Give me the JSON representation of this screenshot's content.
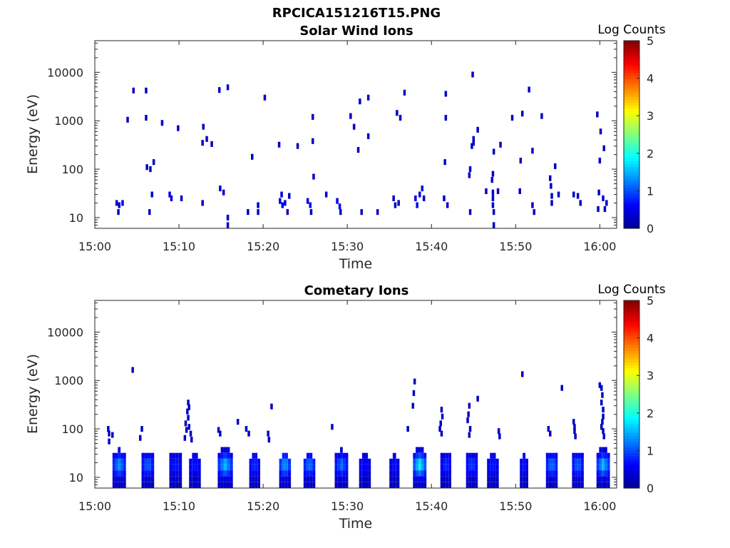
{
  "figure_title": "RPCICA151216T15.PNG",
  "colors": {
    "colormap": [
      "#00008f",
      "#0000ff",
      "#0080ff",
      "#00ffff",
      "#80ff80",
      "#ffff00",
      "#ff8000",
      "#ff0000",
      "#800000"
    ],
    "axis": "#262626",
    "background": "#ffffff"
  },
  "chart_data": [
    {
      "type": "heatmap",
      "title": "Solar Wind Ions",
      "xlabel": "Time",
      "ylabel": "Energy (eV)",
      "xticks": [
        "15:00",
        "15:10",
        "15:20",
        "15:30",
        "15:40",
        "15:50",
        "16:00"
      ],
      "x_range_min": [
        0,
        62
      ],
      "ylim": [
        6,
        45000
      ],
      "yscale": "log",
      "yticks": [
        10,
        100,
        1000,
        10000
      ],
      "ytick_labels": [
        "10",
        "100",
        "1000",
        "10000"
      ],
      "colorbar": {
        "label": "Log Counts",
        "range": [
          0,
          5
        ],
        "ticks": [
          "0",
          "1",
          "2",
          "3",
          "4",
          "5"
        ]
      },
      "cells": [
        [
          2.6,
          20,
          0.4
        ],
        [
          2.9,
          18,
          0.4
        ],
        [
          3.3,
          20,
          0.4
        ],
        [
          2.8,
          13,
          0.3
        ],
        [
          3.9,
          1050,
          0.3
        ],
        [
          4.6,
          4200,
          0.3
        ],
        [
          6.1,
          4200,
          0.3
        ],
        [
          6.1,
          1150,
          0.3
        ],
        [
          6.2,
          110,
          0.3
        ],
        [
          6.6,
          100,
          0.3
        ],
        [
          7.0,
          140,
          0.3
        ],
        [
          6.5,
          13,
          0.3
        ],
        [
          6.8,
          30,
          0.3
        ],
        [
          8.0,
          900,
          0.3
        ],
        [
          9.9,
          700,
          0.3
        ],
        [
          8.9,
          30,
          0.4
        ],
        [
          9.1,
          25,
          0.4
        ],
        [
          10.3,
          25,
          0.3
        ],
        [
          12.9,
          750,
          0.3
        ],
        [
          12.8,
          350,
          0.3
        ],
        [
          13.3,
          420,
          0.3
        ],
        [
          13.9,
          330,
          0.3
        ],
        [
          12.8,
          20,
          0.3
        ],
        [
          14.8,
          4300,
          0.3
        ],
        [
          15.8,
          4900,
          0.3
        ],
        [
          14.9,
          40,
          0.4
        ],
        [
          15.3,
          33,
          0.4
        ],
        [
          15.8,
          10,
          0.3
        ],
        [
          15.8,
          7,
          0.3
        ],
        [
          20.2,
          3000,
          0.3
        ],
        [
          18.7,
          180,
          0.3
        ],
        [
          18.2,
          13,
          0.3
        ],
        [
          19.4,
          18,
          0.3
        ],
        [
          19.4,
          13,
          0.3
        ],
        [
          21.9,
          320,
          0.3
        ],
        [
          24.1,
          300,
          0.3
        ],
        [
          25.9,
          1200,
          0.3
        ],
        [
          25.9,
          380,
          0.3
        ],
        [
          26.0,
          70,
          0.3
        ],
        [
          22.0,
          22,
          0.5
        ],
        [
          22.3,
          18,
          0.5
        ],
        [
          22.6,
          20,
          0.5
        ],
        [
          22.2,
          30,
          0.3
        ],
        [
          23.1,
          28,
          0.3
        ],
        [
          22.9,
          13,
          0.3
        ],
        [
          25.3,
          22,
          0.5
        ],
        [
          25.6,
          18,
          0.5
        ],
        [
          25.7,
          13,
          0.3
        ],
        [
          27.5,
          30,
          0.3
        ],
        [
          28.8,
          22,
          0.5
        ],
        [
          29.1,
          17,
          0.5
        ],
        [
          29.2,
          13,
          0.3
        ],
        [
          30.4,
          1250,
          0.3
        ],
        [
          30.8,
          750,
          0.3
        ],
        [
          31.3,
          250,
          0.3
        ],
        [
          31.5,
          2500,
          0.3
        ],
        [
          32.5,
          3000,
          0.3
        ],
        [
          32.5,
          480,
          0.3
        ],
        [
          31.7,
          13,
          0.3
        ],
        [
          33.6,
          13,
          0.3
        ],
        [
          35.5,
          25,
          0.3
        ],
        [
          35.9,
          1450,
          0.3
        ],
        [
          36.3,
          1150,
          0.3
        ],
        [
          36.8,
          3800,
          0.3
        ],
        [
          36.1,
          20,
          0.3
        ],
        [
          35.7,
          18,
          0.3
        ],
        [
          38.1,
          25,
          0.5
        ],
        [
          38.6,
          30,
          0.5
        ],
        [
          38.9,
          40,
          0.5
        ],
        [
          38.3,
          18,
          0.5
        ],
        [
          39.1,
          25,
          0.3
        ],
        [
          41.7,
          3600,
          0.3
        ],
        [
          41.7,
          1150,
          0.3
        ],
        [
          41.6,
          140,
          0.3
        ],
        [
          41.5,
          25,
          0.3
        ],
        [
          41.9,
          18,
          0.3
        ],
        [
          44.9,
          9000,
          0.3
        ],
        [
          45.0,
          420,
          0.3
        ],
        [
          45.0,
          350,
          0.3
        ],
        [
          44.8,
          300,
          0.3
        ],
        [
          45.5,
          650,
          0.3
        ],
        [
          44.5,
          75,
          0.3
        ],
        [
          44.6,
          100,
          0.3
        ],
        [
          44.6,
          13,
          0.3
        ],
        [
          47.4,
          230,
          0.3
        ],
        [
          47.3,
          80,
          0.3
        ],
        [
          47.2,
          60,
          0.3
        ],
        [
          46.5,
          35,
          0.3
        ],
        [
          47.3,
          33,
          0.3
        ],
        [
          47.3,
          25,
          0.3
        ],
        [
          47.3,
          18,
          0.3
        ],
        [
          47.4,
          13,
          0.3
        ],
        [
          47.4,
          7,
          0.3
        ],
        [
          47.9,
          35,
          0.3
        ],
        [
          48.2,
          320,
          0.3
        ],
        [
          49.6,
          1150,
          0.3
        ],
        [
          50.8,
          1400,
          0.3
        ],
        [
          50.6,
          150,
          0.3
        ],
        [
          50.5,
          35,
          0.3
        ],
        [
          51.6,
          4400,
          0.3
        ],
        [
          52.0,
          240,
          0.3
        ],
        [
          53.1,
          1250,
          0.3
        ],
        [
          54.1,
          65,
          0.3
        ],
        [
          54.2,
          45,
          0.3
        ],
        [
          54.3,
          28,
          0.3
        ],
        [
          54.3,
          20,
          0.3
        ],
        [
          54.7,
          115,
          0.3
        ],
        [
          55.1,
          30,
          0.3
        ],
        [
          52.0,
          18,
          0.3
        ],
        [
          52.2,
          13,
          0.3
        ],
        [
          56.9,
          30,
          0.3
        ],
        [
          57.4,
          28,
          0.3
        ],
        [
          57.7,
          20,
          0.3
        ],
        [
          59.7,
          1350,
          0.3
        ],
        [
          60.1,
          600,
          0.3
        ],
        [
          60.5,
          270,
          0.3
        ],
        [
          60.0,
          150,
          0.3
        ],
        [
          59.9,
          33,
          0.4
        ],
        [
          60.4,
          25,
          0.4
        ],
        [
          60.8,
          20,
          0.4
        ],
        [
          60.6,
          15,
          0.3
        ],
        [
          59.8,
          15,
          0.3
        ]
      ]
    },
    {
      "type": "heatmap",
      "title": "Cometary Ions",
      "xlabel": "Time",
      "ylabel": "Energy (eV)",
      "xticks": [
        "15:00",
        "15:10",
        "15:20",
        "15:30",
        "15:40",
        "15:50",
        "16:00"
      ],
      "x_range_min": [
        0,
        62
      ],
      "ylim": [
        6,
        45000
      ],
      "yscale": "log",
      "yticks": [
        10,
        100,
        1000,
        10000
      ],
      "ytick_labels": [
        "10",
        "100",
        "1000",
        "10000"
      ],
      "colorbar": {
        "label": "Log Counts",
        "range": [
          0,
          5
        ],
        "ticks": [
          "0",
          "1",
          "2",
          "3",
          "4",
          "5"
        ]
      },
      "bursts": [
        {
          "t": 2.9,
          "w": 1.6,
          "emax": 40,
          "peak": 1.4
        },
        {
          "t": 6.3,
          "w": 1.5,
          "emax": 40,
          "peak": 1.2
        },
        {
          "t": 9.6,
          "w": 1.5,
          "emax": 40,
          "peak": 0.8
        },
        {
          "t": 11.9,
          "w": 1.4,
          "emax": 35,
          "peak": 0.8
        },
        {
          "t": 15.5,
          "w": 1.8,
          "emax": 45,
          "peak": 1.6
        },
        {
          "t": 19.0,
          "w": 1.3,
          "emax": 35,
          "peak": 0.9
        },
        {
          "t": 22.6,
          "w": 1.4,
          "emax": 35,
          "peak": 1.5
        },
        {
          "t": 25.5,
          "w": 1.4,
          "emax": 35,
          "peak": 1.3
        },
        {
          "t": 29.3,
          "w": 1.6,
          "emax": 40,
          "peak": 1.2
        },
        {
          "t": 32.1,
          "w": 1.4,
          "emax": 35,
          "peak": 0.7
        },
        {
          "t": 35.6,
          "w": 1.2,
          "emax": 35,
          "peak": 0.7
        },
        {
          "t": 38.6,
          "w": 1.6,
          "emax": 45,
          "peak": 1.9
        },
        {
          "t": 41.7,
          "w": 1.3,
          "emax": 40,
          "peak": 0.9
        },
        {
          "t": 44.8,
          "w": 1.4,
          "emax": 40,
          "peak": 1.0
        },
        {
          "t": 47.3,
          "w": 1.4,
          "emax": 35,
          "peak": 0.8
        },
        {
          "t": 51.0,
          "w": 1.0,
          "emax": 30,
          "peak": 0.7
        },
        {
          "t": 54.3,
          "w": 1.4,
          "emax": 40,
          "peak": 1.3
        },
        {
          "t": 57.4,
          "w": 1.4,
          "emax": 40,
          "peak": 1.2
        },
        {
          "t": 60.4,
          "w": 1.6,
          "emax": 45,
          "peak": 1.6
        }
      ],
      "cells": [
        [
          1.6,
          100,
          0.3
        ],
        [
          1.7,
          80,
          0.3
        ],
        [
          2.1,
          75,
          0.3
        ],
        [
          1.7,
          55,
          0.3
        ],
        [
          4.5,
          1650,
          0.3
        ],
        [
          5.6,
          100,
          0.3
        ],
        [
          5.4,
          65,
          0.3
        ],
        [
          11.1,
          350,
          0.3
        ],
        [
          11.2,
          280,
          0.3
        ],
        [
          11.0,
          230,
          0.3
        ],
        [
          11.1,
          170,
          0.3
        ],
        [
          10.8,
          130,
          0.3
        ],
        [
          11.2,
          110,
          0.3
        ],
        [
          10.9,
          95,
          0.3
        ],
        [
          11.4,
          80,
          0.3
        ],
        [
          10.7,
          65,
          0.3
        ],
        [
          11.5,
          60,
          0.3
        ],
        [
          14.7,
          95,
          0.3
        ],
        [
          14.9,
          80,
          0.3
        ],
        [
          17.0,
          140,
          0.3
        ],
        [
          18.0,
          100,
          0.3
        ],
        [
          18.3,
          80,
          0.3
        ],
        [
          21.0,
          290,
          0.3
        ],
        [
          20.6,
          80,
          0.3
        ],
        [
          20.7,
          60,
          0.3
        ],
        [
          28.2,
          110,
          0.3
        ],
        [
          38.0,
          950,
          0.3
        ],
        [
          37.9,
          550,
          0.3
        ],
        [
          37.8,
          300,
          0.3
        ],
        [
          37.2,
          100,
          0.3
        ],
        [
          41.2,
          250,
          0.3
        ],
        [
          41.3,
          180,
          0.3
        ],
        [
          41.1,
          130,
          0.3
        ],
        [
          41.0,
          100,
          0.3
        ],
        [
          41.2,
          80,
          0.3
        ],
        [
          44.5,
          300,
          0.3
        ],
        [
          44.4,
          200,
          0.3
        ],
        [
          44.3,
          150,
          0.3
        ],
        [
          44.6,
          100,
          0.3
        ],
        [
          44.5,
          75,
          0.3
        ],
        [
          45.5,
          420,
          0.3
        ],
        [
          48.0,
          90,
          0.3
        ],
        [
          48.1,
          70,
          0.3
        ],
        [
          50.8,
          1350,
          0.3
        ],
        [
          53.9,
          100,
          0.3
        ],
        [
          54.1,
          80,
          0.3
        ],
        [
          55.5,
          700,
          0.3
        ],
        [
          56.9,
          140,
          0.3
        ],
        [
          57.0,
          110,
          0.3
        ],
        [
          57.0,
          90,
          0.3
        ],
        [
          57.1,
          70,
          0.3
        ],
        [
          60.0,
          800,
          0.3
        ],
        [
          60.2,
          700,
          0.3
        ],
        [
          60.3,
          500,
          0.3
        ],
        [
          60.2,
          350,
          0.3
        ],
        [
          60.4,
          250,
          0.3
        ],
        [
          60.4,
          180,
          0.3
        ],
        [
          60.3,
          140,
          0.3
        ],
        [
          60.2,
          110,
          0.3
        ],
        [
          60.4,
          90,
          0.3
        ],
        [
          60.5,
          70,
          0.3
        ]
      ]
    }
  ]
}
